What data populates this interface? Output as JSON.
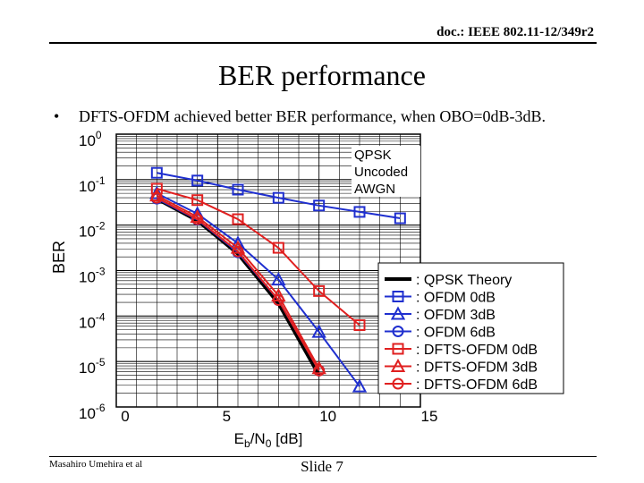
{
  "header": {
    "doc_id": "doc.: IEEE 802.11-12/349r2"
  },
  "slide": {
    "title": "BER performance",
    "bullet_marker": "•",
    "bullet_text": "DFTS-OFDM achieved better BER performance, when OBO=0dB-3dB."
  },
  "footer": {
    "left_text": "Masahiro Umehira et al",
    "slide_label": "Slide 7"
  },
  "colors": {
    "blue": "#1f2fcf",
    "red": "#e02020",
    "black": "#000000"
  },
  "chart_data": {
    "type": "line",
    "title": "",
    "xlabel": "Eb/N0 [dB]",
    "ylabel": "BER",
    "xlim": [
      0,
      15
    ],
    "ylim_exponent": [
      -6,
      0
    ],
    "x_ticks": [
      "0",
      "5",
      "10",
      "15"
    ],
    "x_tick_values": [
      0,
      5,
      10,
      15
    ],
    "y_ticks": [
      {
        "base": "10",
        "exp": "0",
        "value": 0
      },
      {
        "base": "10",
        "exp": "-1",
        "value": -1
      },
      {
        "base": "10",
        "exp": "-2",
        "value": -2
      },
      {
        "base": "10",
        "exp": "-3",
        "value": -3
      },
      {
        "base": "10",
        "exp": "-4",
        "value": -4
      },
      {
        "base": "10",
        "exp": "-5",
        "value": -5
      },
      {
        "base": "10",
        "exp": "-6",
        "value": -6
      }
    ],
    "annotation": [
      "QPSK",
      "Uncoded",
      "AWGN"
    ],
    "y_scale": "log10",
    "series": [
      {
        "name": ": QPSK Theory",
        "color": "#000000",
        "marker": "none",
        "width": 4,
        "x": [
          2,
          4,
          6,
          8,
          10
        ],
        "log_y": [
          -1.42,
          -1.9,
          -2.63,
          -3.72,
          -5.3
        ]
      },
      {
        "name": ": OFDM 0dB",
        "color": "#1f2fcf",
        "marker": "square",
        "width": 2,
        "x": [
          2,
          4,
          6,
          8,
          10,
          12,
          14
        ],
        "log_y": [
          -0.85,
          -1.02,
          -1.22,
          -1.4,
          -1.57,
          -1.71,
          -1.85
        ]
      },
      {
        "name": ": OFDM 3dB",
        "color": "#1f2fcf",
        "marker": "triangle",
        "width": 2,
        "x": [
          2,
          4,
          6,
          8,
          10,
          12
        ],
        "log_y": [
          -1.3,
          -1.75,
          -2.4,
          -3.2,
          -4.35,
          -5.55
        ]
      },
      {
        "name": ": OFDM 6dB",
        "color": "#1f2fcf",
        "marker": "circle",
        "width": 2,
        "x": [
          2,
          4,
          6,
          8,
          10
        ],
        "log_y": [
          -1.42,
          -1.88,
          -2.6,
          -3.65,
          -5.2
        ]
      },
      {
        "name": ": DFTS-OFDM 0dB",
        "color": "#e02020",
        "marker": "square",
        "width": 2,
        "x": [
          2,
          4,
          6,
          8,
          10,
          12
        ],
        "log_y": [
          -1.2,
          -1.45,
          -1.87,
          -2.5,
          -3.45,
          -4.2
        ]
      },
      {
        "name": ": DFTS-OFDM 3dB",
        "color": "#e02020",
        "marker": "triangle",
        "width": 2,
        "x": [
          2,
          4,
          6,
          8,
          10
        ],
        "log_y": [
          -1.35,
          -1.82,
          -2.5,
          -3.55,
          -5.15
        ]
      },
      {
        "name": ": DFTS-OFDM 6dB",
        "color": "#e02020",
        "marker": "circle",
        "width": 2,
        "x": [
          2,
          4,
          6,
          8,
          10
        ],
        "log_y": [
          -1.4,
          -1.87,
          -2.58,
          -3.65,
          -5.2
        ]
      }
    ]
  }
}
